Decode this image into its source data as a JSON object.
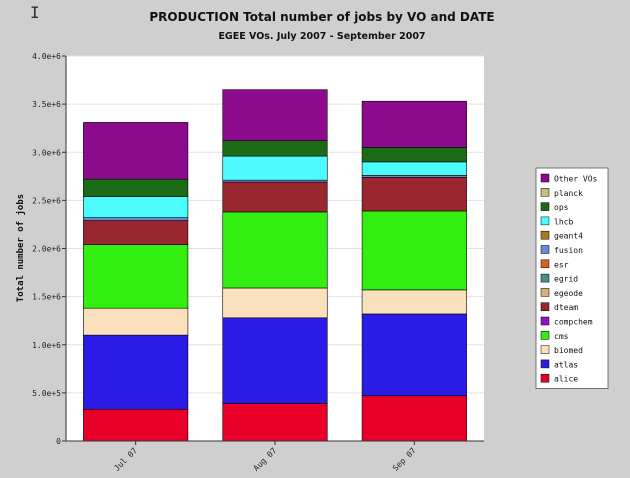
{
  "chart_data": {
    "type": "bar",
    "stacked": true,
    "title": "PRODUCTION Total number of jobs by VO and DATE",
    "subtitle": "EGEE VOs. July 2007 - September 2007",
    "ylabel": "Total number of jobs",
    "xlabel": "",
    "ylim": [
      0,
      4000000
    ],
    "yticks": [
      0,
      500000,
      1000000,
      1500000,
      2000000,
      2500000,
      3000000,
      3500000,
      4000000
    ],
    "ytick_labels": [
      "0",
      "5.0e+5",
      "1.0e+6",
      "1.5e+6",
      "2.0e+6",
      "2.5e+6",
      "3.0e+6",
      "3.5e+6",
      "4.0e+6"
    ],
    "grid": true,
    "legend_position": "right",
    "categories": [
      "Jul 07",
      "Aug 07",
      "Sep 07"
    ],
    "series": [
      {
        "name": "alice",
        "color": "#e8002a",
        "values": [
          330000,
          390000,
          470000
        ]
      },
      {
        "name": "atlas",
        "color": "#2a1be6",
        "values": [
          770000,
          890000,
          850000
        ]
      },
      {
        "name": "biomed",
        "color": "#fbe0bd",
        "values": [
          280000,
          310000,
          250000
        ]
      },
      {
        "name": "cms",
        "color": "#33ee11",
        "values": [
          660000,
          790000,
          820000
        ]
      },
      {
        "name": "compchem",
        "color": "#8b14c8",
        "values": [
          0,
          0,
          0
        ]
      },
      {
        "name": "dteam",
        "color": "#9a2630",
        "values": [
          250000,
          310000,
          350000
        ]
      },
      {
        "name": "egeode",
        "color": "#d8b07a",
        "values": [
          0,
          0,
          0
        ]
      },
      {
        "name": "egrid",
        "color": "#4a8f8f",
        "values": [
          0,
          0,
          0
        ]
      },
      {
        "name": "esr",
        "color": "#d4622a",
        "values": [
          0,
          0,
          0
        ]
      },
      {
        "name": "fusion",
        "color": "#6e89d4",
        "values": [
          30000,
          20000,
          20000
        ]
      },
      {
        "name": "geant4",
        "color": "#a67c1a",
        "values": [
          0,
          0,
          0
        ]
      },
      {
        "name": "lhcb",
        "color": "#4dfbff",
        "values": [
          220000,
          250000,
          140000
        ]
      },
      {
        "name": "ops",
        "color": "#1b6a16",
        "values": [
          180000,
          160000,
          150000
        ]
      },
      {
        "name": "planck",
        "color": "#c6c07a",
        "values": [
          0,
          0,
          0
        ]
      },
      {
        "name": "Other VOs",
        "color": "#8c0a8c",
        "values": [
          590000,
          530000,
          480000
        ]
      }
    ]
  }
}
